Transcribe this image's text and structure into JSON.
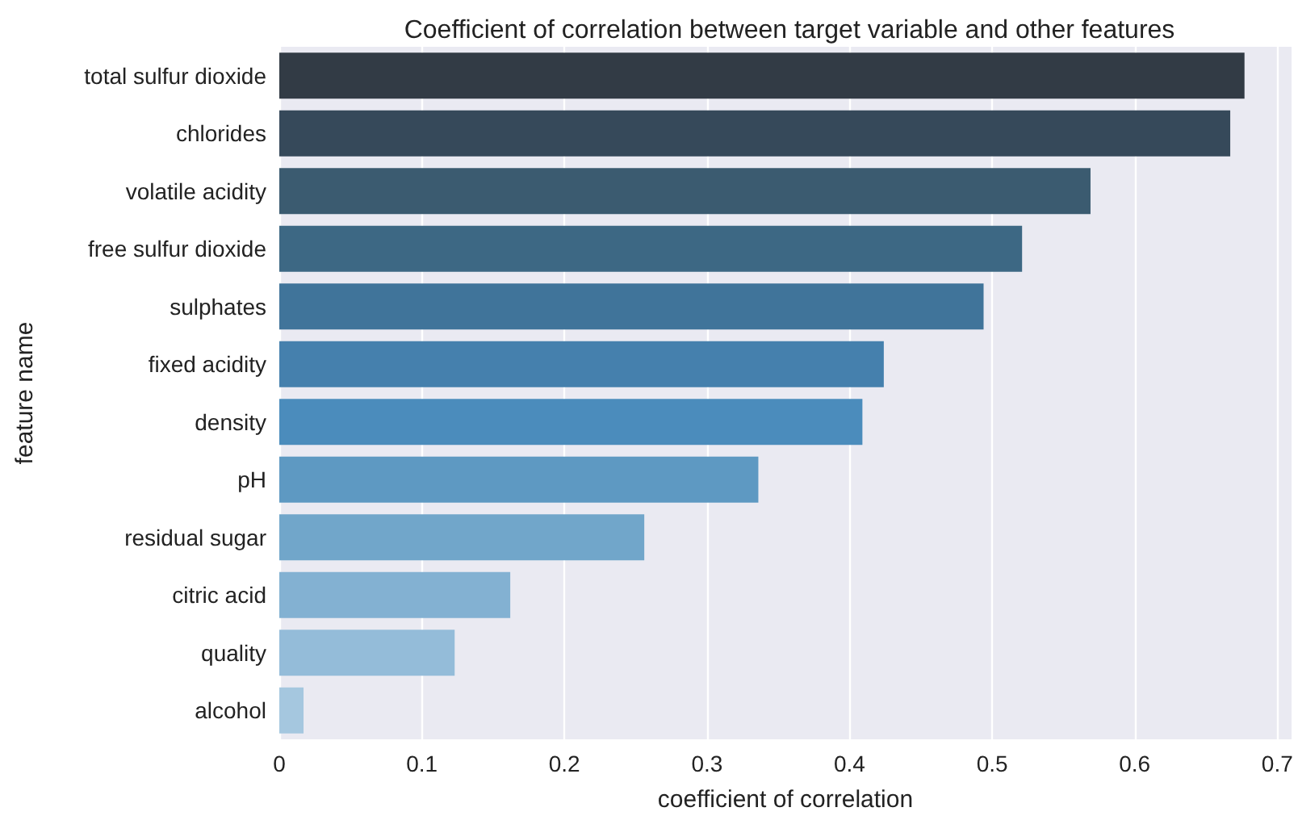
{
  "chart_data": {
    "type": "bar",
    "orientation": "horizontal",
    "title": "Coefficient of correlation between target variable and other features",
    "xlabel": "coefficient of correlation",
    "ylabel": "feature name",
    "categories": [
      "total sulfur dioxide",
      "chlorides",
      "volatile acidity",
      "free sulfur dioxide",
      "sulphates",
      "fixed acidity",
      "density",
      "pH",
      "residual sugar",
      "citric acid",
      "quality",
      "alcohol"
    ],
    "values": [
      0.677,
      0.667,
      0.569,
      0.521,
      0.494,
      0.424,
      0.409,
      0.336,
      0.256,
      0.162,
      0.123,
      0.017
    ],
    "colors": [
      "#323b45",
      "#36495a",
      "#3b5b70",
      "#3d6884",
      "#40749a",
      "#4580ad",
      "#4b8cbc",
      "#5e99c2",
      "#71a6ca",
      "#83b1d2",
      "#94bcd9",
      "#a5c7df"
    ],
    "xlim": [
      0,
      0.71
    ],
    "xticks": [
      0,
      0.1,
      0.2,
      0.3,
      0.4,
      0.5,
      0.6,
      0.7
    ],
    "grid": "x"
  }
}
